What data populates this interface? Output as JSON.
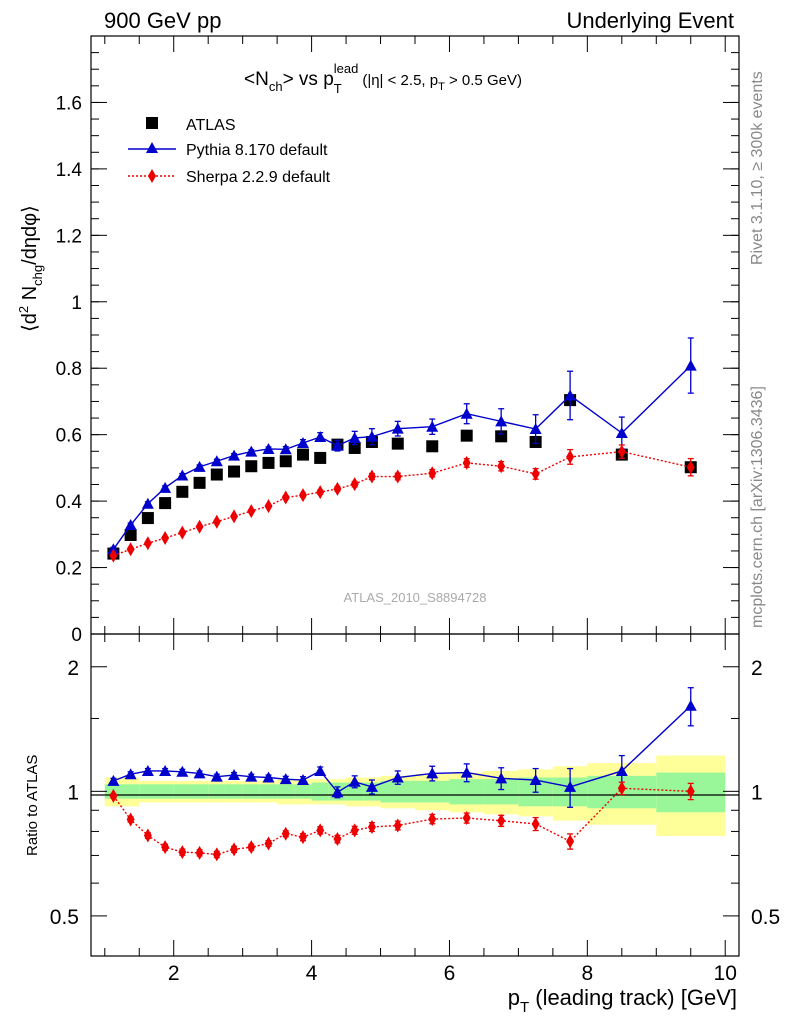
{
  "header": {
    "left": "900 GeV pp",
    "right": "Underlying Event"
  },
  "side_labels": {
    "rivet": "Rivet 3.1.10, ≥ 300k events",
    "mcplots": "mcplots.cern.ch [arXiv:1306.3436]"
  },
  "colors": {
    "atlas": "#000000",
    "pythia": "#0000cc",
    "sherpa": "#ee0000",
    "band_inner": "#99f799",
    "band_outer": "#ffff99"
  },
  "chart_data": [
    {
      "type": "scatter",
      "panel": "main",
      "title_parts": {
        "lhs": "<N",
        "lhs_sub": "ch",
        "mid": "> vs p",
        "mid_sub": "T",
        "mid_sup": "lead",
        "cuts": "(|η| < 2.5, p",
        "cuts_sub": "T",
        "cuts_end": " > 0.5 GeV)"
      },
      "ylabel_parts": {
        "open": "⟨d",
        "sup": "2",
        "n": " N",
        "sub": "chg",
        "rest": "/dηdφ⟩"
      },
      "watermark": "ATLAS_2010_S8894728",
      "xlim": [
        0.8,
        10.2
      ],
      "ylim": [
        0,
        1.8
      ],
      "yticks": [
        0,
        0.2,
        0.4,
        0.6,
        0.8,
        1,
        1.2,
        1.4,
        1.6
      ],
      "ytick_labels": [
        "0",
        "0.2",
        "0.4",
        "0.6",
        "0.8",
        "1",
        "1.2",
        "1.4",
        "1.6"
      ],
      "legend_position": "top-left",
      "x": [
        1.125,
        1.375,
        1.625,
        1.875,
        2.125,
        2.375,
        2.625,
        2.875,
        3.125,
        3.375,
        3.625,
        3.875,
        4.125,
        4.375,
        4.625,
        4.875,
        5.25,
        5.75,
        6.25,
        6.75,
        7.25,
        7.75,
        8.5,
        9.5
      ],
      "series": [
        {
          "name": "ATLAS",
          "marker": "square",
          "values": [
            0.242,
            0.298,
            0.349,
            0.394,
            0.428,
            0.455,
            0.48,
            0.489,
            0.505,
            0.515,
            0.52,
            0.54,
            0.53,
            0.57,
            0.56,
            0.578,
            0.573,
            0.565,
            0.597,
            0.595,
            0.578,
            0.704,
            0.54,
            0.502
          ],
          "errors": []
        },
        {
          "name": "Pythia 8.170 default",
          "marker": "triangle",
          "values": [
            0.255,
            0.328,
            0.392,
            0.44,
            0.477,
            0.503,
            0.52,
            0.537,
            0.549,
            0.557,
            0.556,
            0.575,
            0.593,
            0.567,
            0.59,
            0.594,
            0.618,
            0.624,
            0.663,
            0.64,
            0.617,
            0.718,
            0.605,
            0.808
          ],
          "errors": [
            0.006,
            0.006,
            0.006,
            0.006,
            0.006,
            0.006,
            0.006,
            0.006,
            0.006,
            0.006,
            0.008,
            0.01,
            0.013,
            0.016,
            0.02,
            0.024,
            0.022,
            0.023,
            0.03,
            0.038,
            0.043,
            0.073,
            0.048,
            0.083
          ]
        },
        {
          "name": "Sherpa 2.2.9 default",
          "marker": "diamond",
          "values": [
            0.236,
            0.255,
            0.273,
            0.289,
            0.305,
            0.323,
            0.338,
            0.354,
            0.37,
            0.385,
            0.411,
            0.418,
            0.427,
            0.437,
            0.451,
            0.474,
            0.474,
            0.484,
            0.515,
            0.505,
            0.482,
            0.533,
            0.549,
            0.502
          ],
          "errors": [
            0.004,
            0.004,
            0.004,
            0.004,
            0.004,
            0.004,
            0.004,
            0.004,
            0.004,
            0.004,
            0.005,
            0.006,
            0.006,
            0.007,
            0.008,
            0.009,
            0.01,
            0.011,
            0.013,
            0.014,
            0.016,
            0.022,
            0.02,
            0.026
          ]
        }
      ]
    },
    {
      "type": "line",
      "panel": "ratio",
      "ylabel": "Ratio to ATLAS",
      "xlabel_parts": {
        "p": "p",
        "sub": "T",
        "rest": " (leading track) [GeV]"
      },
      "xlim": [
        0.8,
        10.2
      ],
      "ylim_log": [
        0.4,
        2.4
      ],
      "yticks": [
        0.5,
        1,
        2
      ],
      "ytick_labels": [
        "0.5",
        "1",
        "2"
      ],
      "xticks": [
        2,
        4,
        6,
        8,
        10
      ],
      "xtick_labels": [
        "2",
        "4",
        "6",
        "8",
        "10"
      ],
      "x": [
        1.125,
        1.375,
        1.625,
        1.875,
        2.125,
        2.375,
        2.625,
        2.875,
        3.125,
        3.375,
        3.625,
        3.875,
        4.125,
        4.375,
        4.625,
        4.875,
        5.25,
        5.75,
        6.25,
        6.75,
        7.25,
        7.75,
        8.5,
        9.5
      ],
      "bin_edges": [
        1.0,
        1.25,
        1.5,
        1.75,
        2.0,
        2.25,
        2.5,
        2.75,
        3.0,
        3.25,
        3.5,
        3.75,
        4.0,
        4.25,
        4.5,
        4.75,
        5.0,
        5.5,
        6.0,
        6.5,
        7.0,
        7.5,
        8.0,
        9.0,
        10.0
      ],
      "band_inner": [
        0.04,
        0.04,
        0.04,
        0.04,
        0.04,
        0.04,
        0.04,
        0.04,
        0.04,
        0.04,
        0.04,
        0.04,
        0.05,
        0.05,
        0.05,
        0.05,
        0.06,
        0.06,
        0.07,
        0.07,
        0.08,
        0.08,
        0.09,
        0.11
      ],
      "band_outer": [
        0.08,
        0.08,
        0.06,
        0.06,
        0.06,
        0.06,
        0.06,
        0.06,
        0.06,
        0.06,
        0.07,
        0.07,
        0.07,
        0.07,
        0.08,
        0.08,
        0.09,
        0.1,
        0.11,
        0.12,
        0.13,
        0.15,
        0.17,
        0.22
      ],
      "series": [
        {
          "name": "Pythia 8.170 default",
          "marker": "triangle",
          "values": [
            1.06,
            1.1,
            1.12,
            1.12,
            1.115,
            1.105,
            1.085,
            1.095,
            1.085,
            1.08,
            1.07,
            1.065,
            1.12,
            0.995,
            1.055,
            1.025,
            1.08,
            1.105,
            1.11,
            1.075,
            1.065,
            1.025,
            1.12,
            1.61
          ],
          "errors": [
            0.015,
            0.015,
            0.015,
            0.015,
            0.015,
            0.015,
            0.015,
            0.015,
            0.015,
            0.015,
            0.017,
            0.02,
            0.025,
            0.03,
            0.035,
            0.04,
            0.04,
            0.045,
            0.055,
            0.065,
            0.07,
            0.11,
            0.1,
            0.17
          ]
        },
        {
          "name": "Sherpa 2.2.9 default",
          "marker": "diamond",
          "values": [
            0.975,
            0.855,
            0.782,
            0.733,
            0.713,
            0.71,
            0.704,
            0.724,
            0.733,
            0.748,
            0.79,
            0.775,
            0.805,
            0.767,
            0.805,
            0.82,
            0.827,
            0.857,
            0.862,
            0.849,
            0.834,
            0.757,
            1.017,
            1.0
          ],
          "errors": [
            0.012,
            0.012,
            0.012,
            0.012,
            0.012,
            0.012,
            0.012,
            0.012,
            0.012,
            0.012,
            0.013,
            0.015,
            0.016,
            0.016,
            0.018,
            0.02,
            0.02,
            0.022,
            0.024,
            0.026,
            0.03,
            0.032,
            0.035,
            0.045
          ]
        }
      ]
    }
  ]
}
